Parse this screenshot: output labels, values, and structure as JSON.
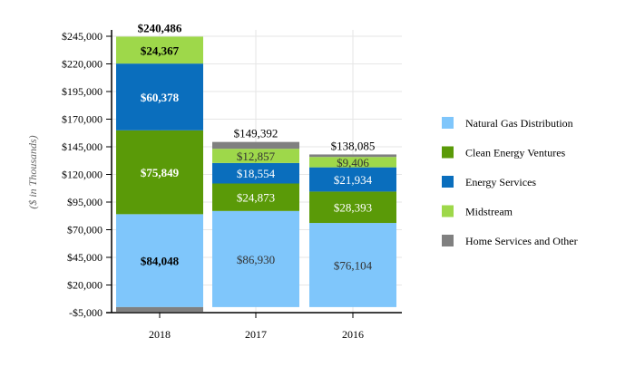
{
  "chart_data": {
    "type": "bar",
    "stacked": true,
    "categories": [
      "2018",
      "2017",
      "2016"
    ],
    "ylabel": "($ in Thousands)",
    "xlabel": "",
    "ylim": [
      -5000,
      245000
    ],
    "yticks": [
      -5000,
      20000,
      45000,
      70000,
      95000,
      120000,
      145000,
      170000,
      195000,
      220000,
      245000
    ],
    "ytick_labels": [
      "-$5,000",
      "$20,000",
      "$45,000",
      "$70,000",
      "$95,000",
      "$120,000",
      "$145,000",
      "$170,000",
      "$195,000",
      "$220,000",
      "$245,000"
    ],
    "grid": true,
    "legend_position": "right",
    "series": [
      {
        "name": "Natural Gas Distribution",
        "color": "#7fc6fb",
        "values": [
          84048,
          86930,
          76104
        ],
        "labels": [
          "$84,048",
          "$86,930",
          "$76,104"
        ]
      },
      {
        "name": "Clean Energy Ventures",
        "color": "#5a9a08",
        "values": [
          75849,
          24873,
          28393
        ],
        "labels": [
          "$75,849",
          "$24,873",
          "$28,393"
        ]
      },
      {
        "name": "Energy Services",
        "color": "#0a6ebd",
        "values": [
          60378,
          18554,
          21934
        ],
        "labels": [
          "$60,378",
          "$18,554",
          "$21,934"
        ]
      },
      {
        "name": "Midstream",
        "color": "#9ed84a",
        "values": [
          24367,
          12857,
          9406
        ],
        "labels": [
          "$24,367",
          "$12,857",
          "$9,406"
        ]
      },
      {
        "name": "Home Services and Other",
        "color": "#808080",
        "values": [
          -4156,
          6178,
          2248
        ],
        "labels": [
          "",
          "",
          ""
        ]
      }
    ],
    "totals": [
      240486,
      149392,
      138085
    ],
    "total_labels": [
      "$240,486",
      "$149,392",
      "$138,085"
    ]
  }
}
